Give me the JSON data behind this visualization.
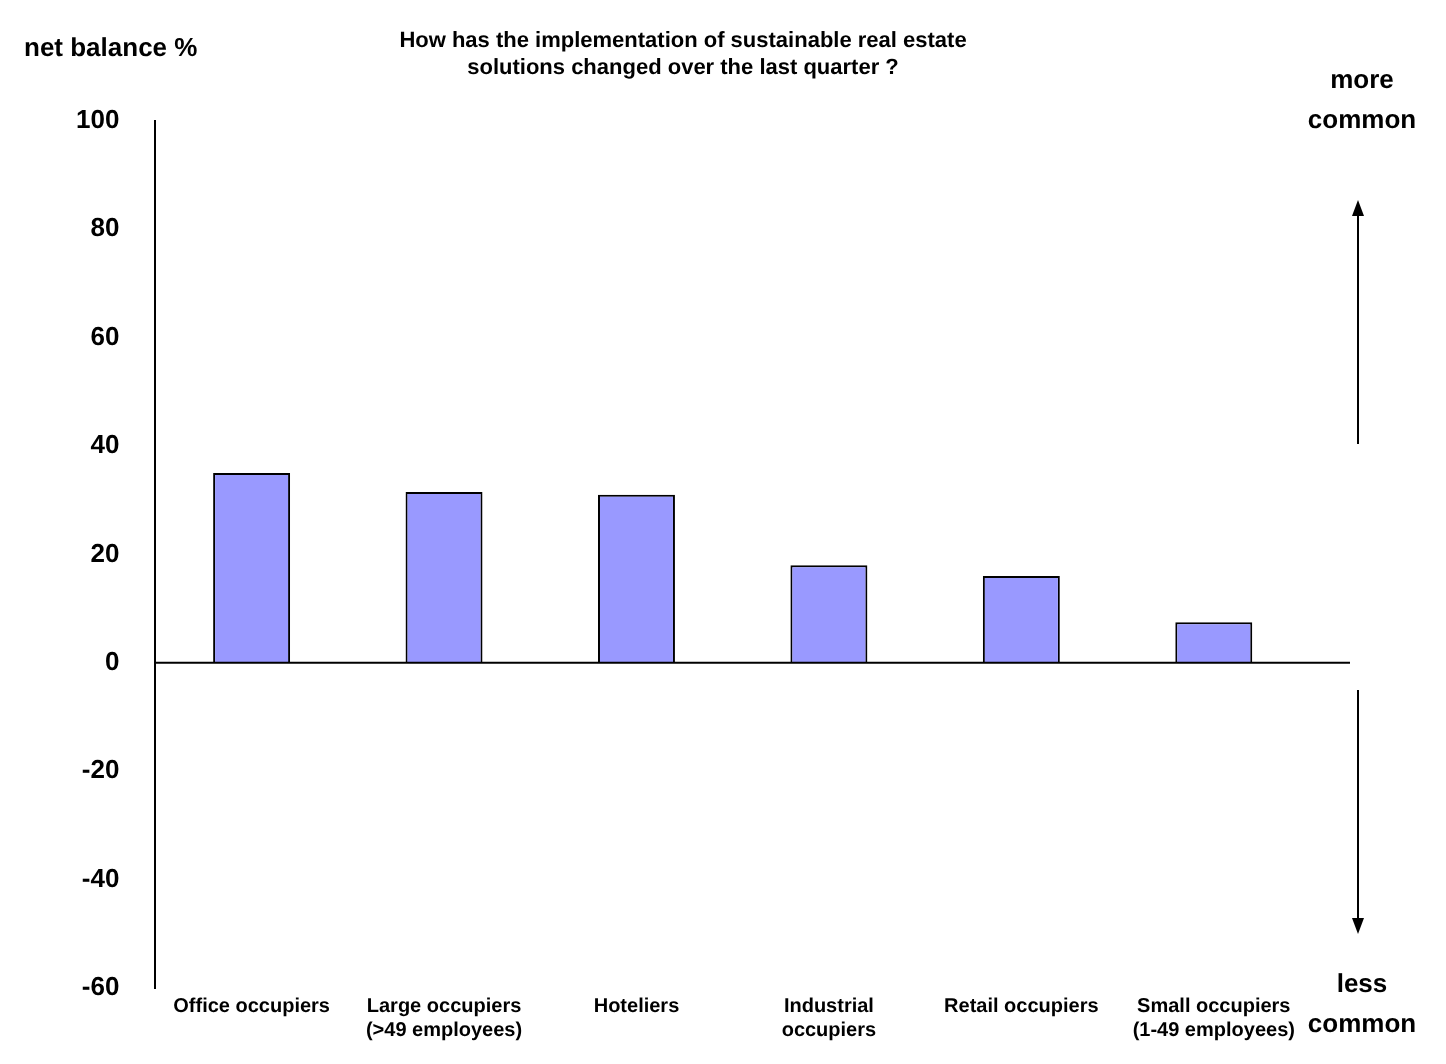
{
  "chart_data": {
    "type": "bar",
    "title": "How has the implementation of sustainable real estate solutions changed over the last quarter ?",
    "ylabel": "net balance %",
    "categories": [
      "Office occupiers",
      "Large occupiers (>49 employees)",
      "Hoteliers",
      "Industrial occupiers",
      "Retail occupiers",
      "Small occupiers (1-49 employees)"
    ],
    "values": [
      35,
      31.5,
      31,
      18,
      16,
      7.5
    ],
    "color": "#9999ff",
    "ref_lines": [
      {
        "axis": "y",
        "value": 0,
        "color": "#000000",
        "line_style": "solid"
      }
    ],
    "ylim": [
      -60,
      100
    ],
    "yticks": [
      -60,
      -40,
      -20,
      0,
      20,
      40,
      60,
      80,
      100
    ],
    "grid": false,
    "annotations": [
      "more common",
      "less common"
    ]
  }
}
